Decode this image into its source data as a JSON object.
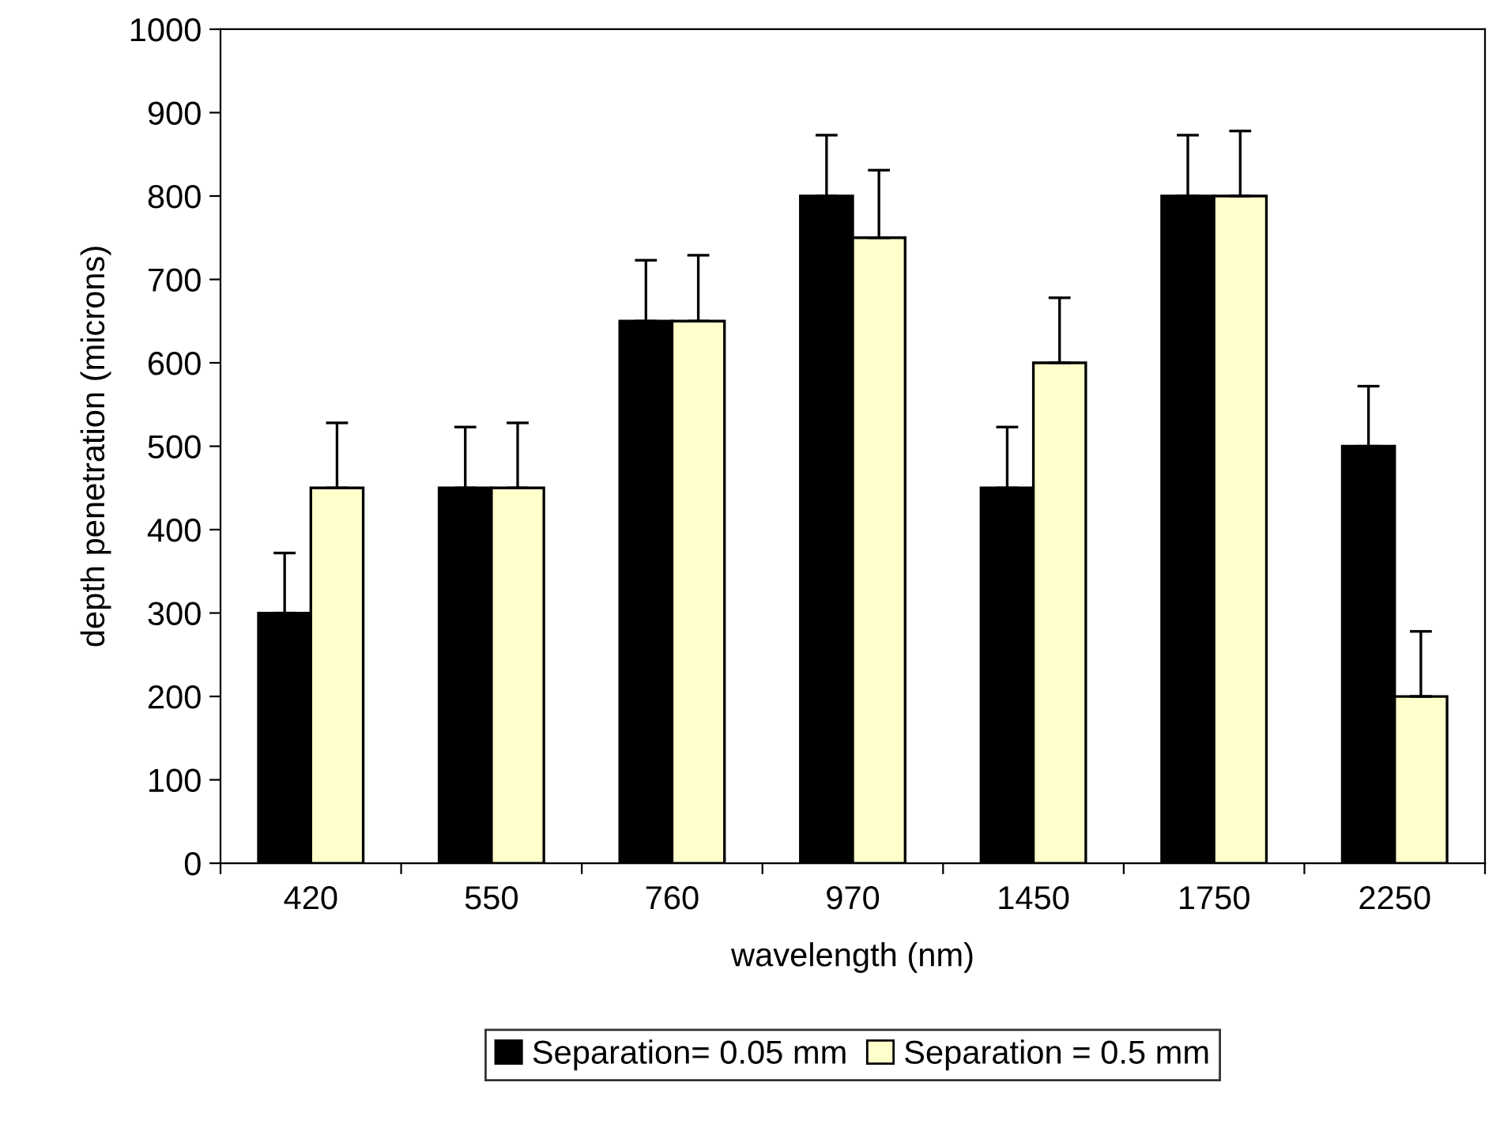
{
  "chart_data": {
    "type": "bar",
    "xlabel": "wavelength (nm)",
    "ylabel": "depth penetration (microns)",
    "categories": [
      "420",
      "550",
      "760",
      "970",
      "1450",
      "1750",
      "2250"
    ],
    "series": [
      {
        "name": "Separation= 0.05 mm",
        "color": "#000000",
        "values": [
          300,
          450,
          650,
          800,
          450,
          800,
          500
        ],
        "errors": [
          [
            300,
            372
          ],
          [
            450,
            523
          ],
          [
            650,
            723
          ],
          [
            800,
            873
          ],
          [
            450,
            523
          ],
          [
            800,
            873
          ],
          [
            500,
            572
          ]
        ]
      },
      {
        "name": "Separation = 0.5 mm",
        "color": "#ffffcc",
        "values": [
          450,
          450,
          650,
          750,
          600,
          800,
          200
        ],
        "errors": [
          [
            450,
            528
          ],
          [
            450,
            528
          ],
          [
            650,
            729
          ],
          [
            750,
            831
          ],
          [
            600,
            678
          ],
          [
            800,
            878
          ],
          [
            200,
            278
          ]
        ]
      }
    ],
    "ylim": [
      0,
      1000
    ],
    "yticks": [
      0,
      100,
      200,
      300,
      400,
      500,
      600,
      700,
      800,
      900,
      1000
    ],
    "grid": false,
    "legend": "bottom"
  }
}
